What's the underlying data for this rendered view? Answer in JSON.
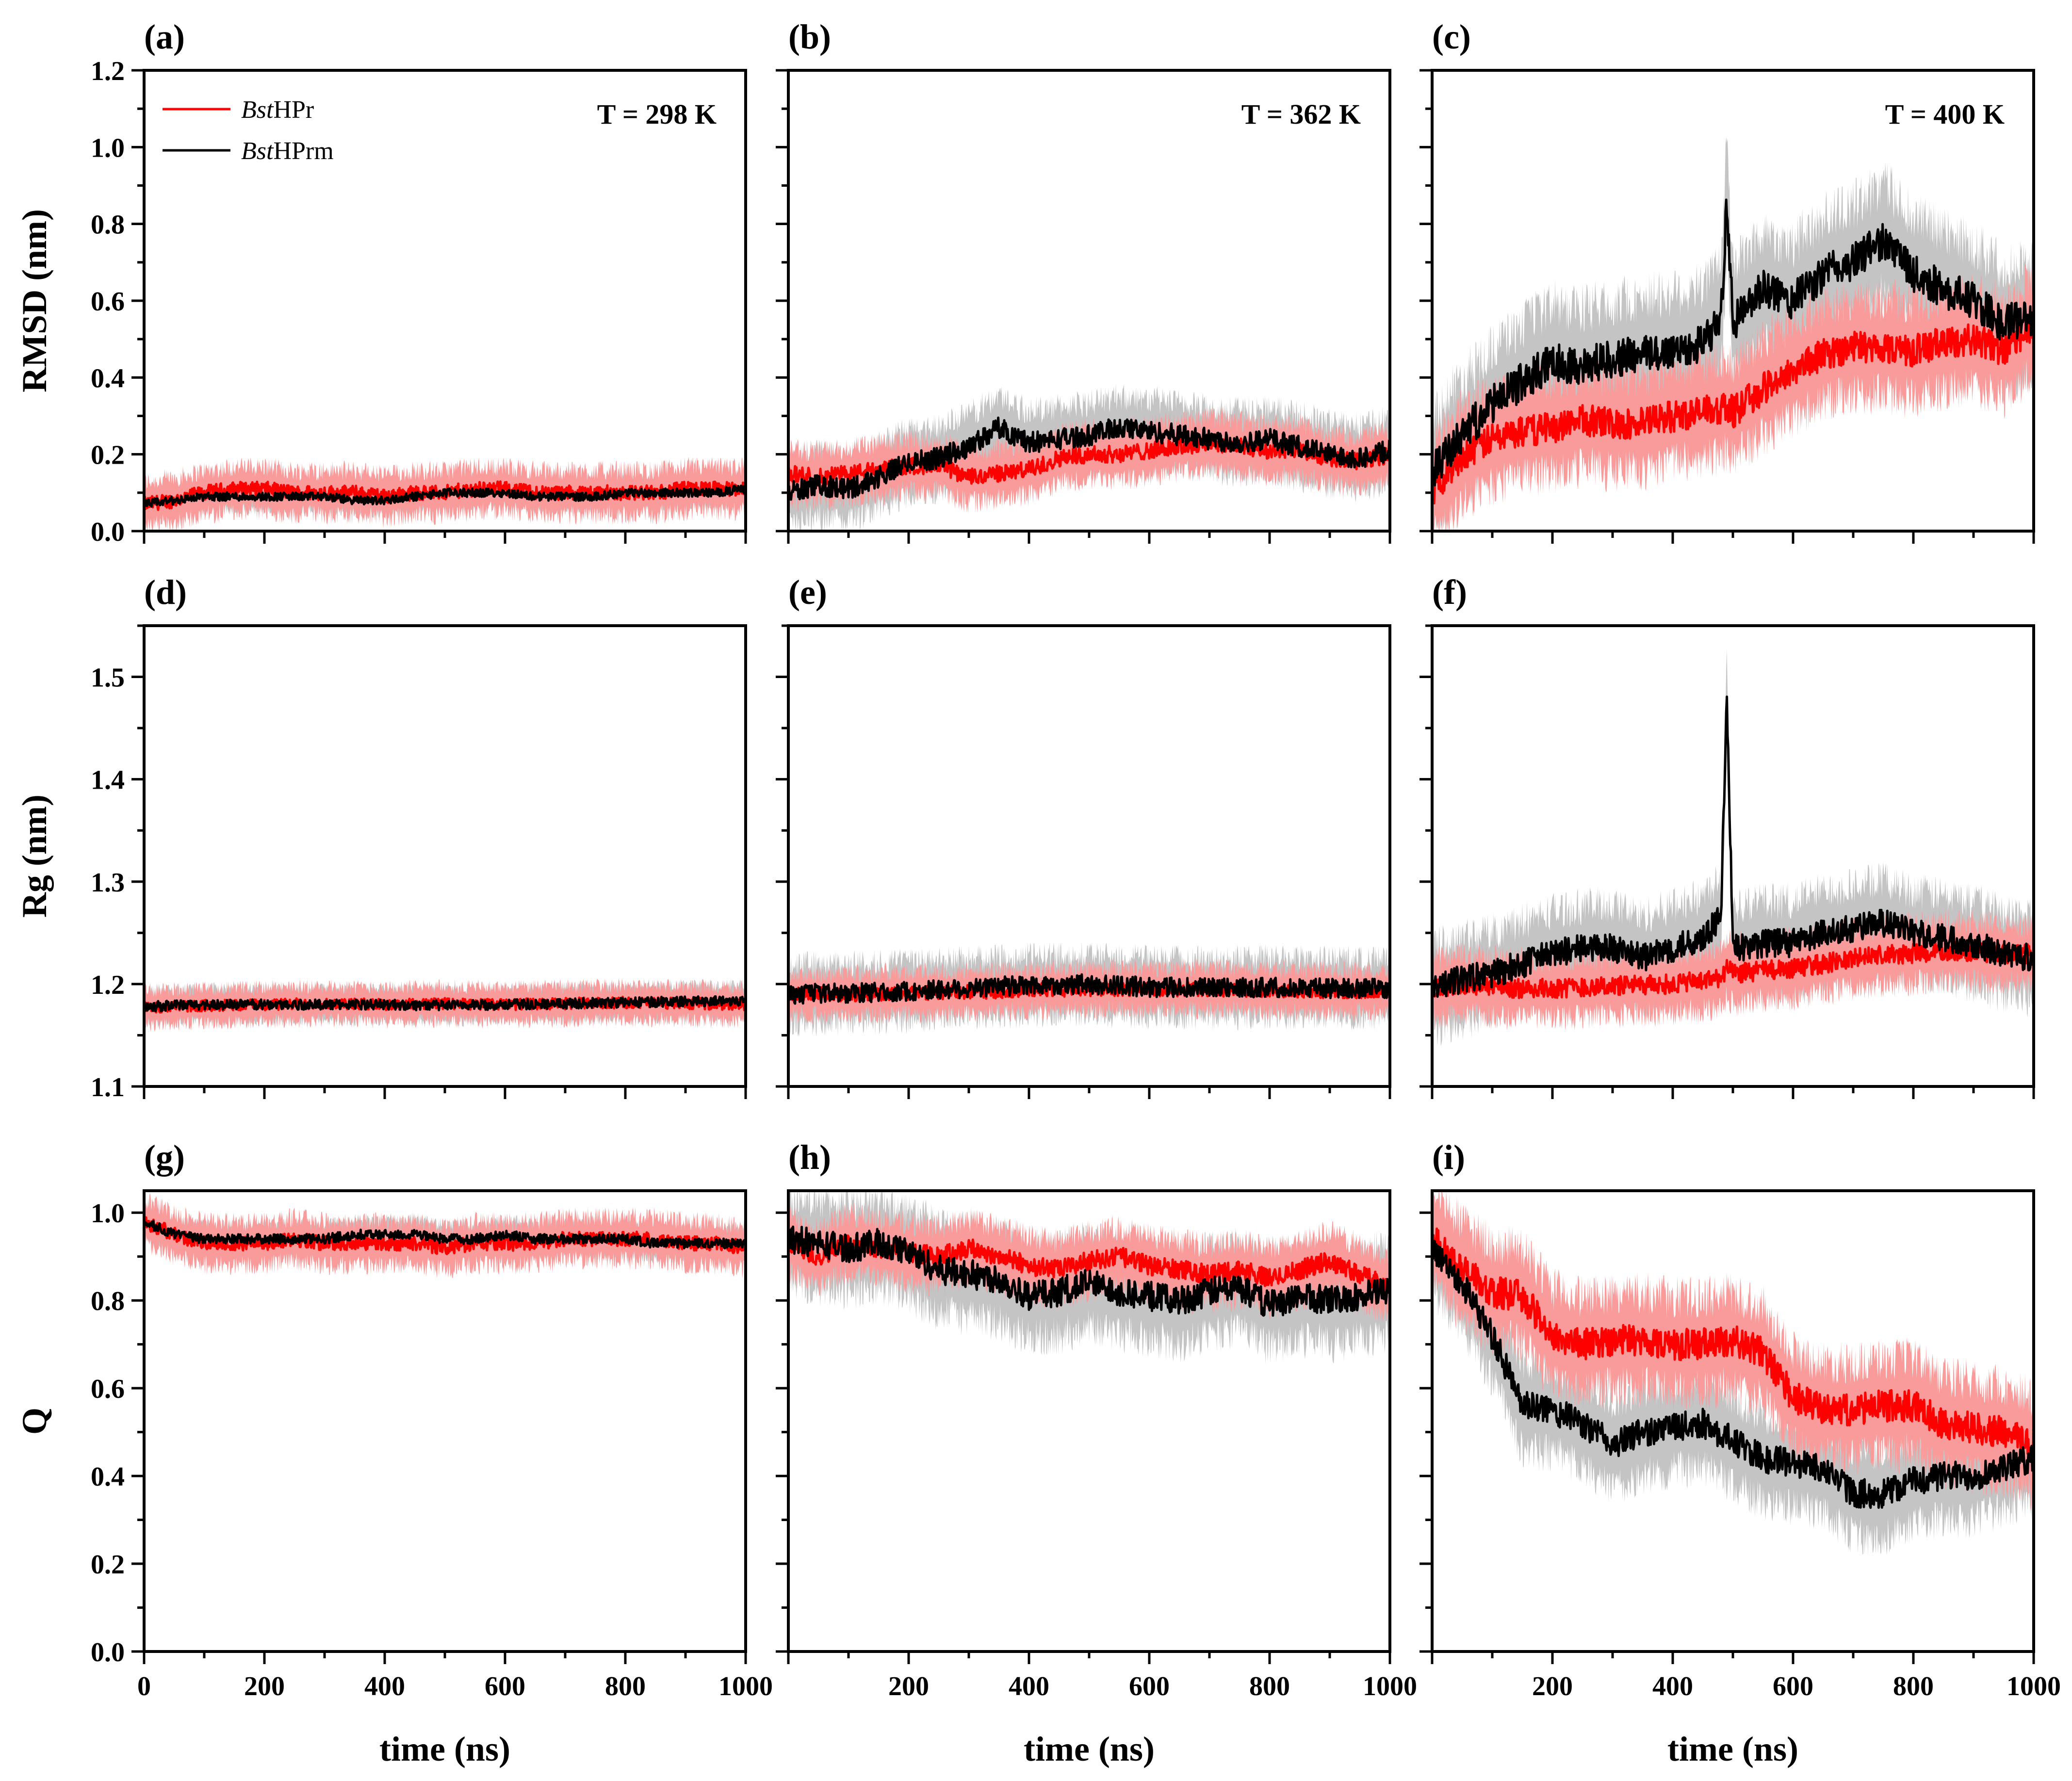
{
  "figure": {
    "legend": {
      "series": [
        {
          "italic": "Bst",
          "rest": "HPr",
          "color": "#ff0000"
        },
        {
          "italic": "Bst",
          "rest": "HPrm",
          "color": "#000000"
        }
      ]
    },
    "colors": {
      "hpr_line": "#ff0000",
      "hpr_band": "#fa9b9b",
      "hprm_line": "#000000",
      "hprm_band": "#c4c4c4"
    },
    "temperature_labels": [
      "T = 298 K",
      "T = 362 K",
      "T = 400 K"
    ],
    "shared_xlabel": "time (ns)"
  },
  "chart_data": [
    {
      "panel": "(a)",
      "type": "line",
      "ylabel": "RMSD (nm)",
      "xlabel": "",
      "xlim": [
        0,
        1000
      ],
      "ylim": [
        0,
        1.2
      ],
      "yticks": [
        "0.0",
        "0.2",
        "0.4",
        "0.6",
        "0.8",
        "1.0",
        "1.2"
      ],
      "xticks": [],
      "temperature": "T = 298 K",
      "x": [
        0,
        50,
        100,
        150,
        200,
        250,
        300,
        350,
        400,
        450,
        500,
        550,
        600,
        650,
        700,
        750,
        800,
        850,
        900,
        950,
        1000
      ],
      "series": [
        {
          "name": "BstHPr",
          "values": [
            0.07,
            0.08,
            0.1,
            0.11,
            0.11,
            0.1,
            0.1,
            0.1,
            0.09,
            0.1,
            0.1,
            0.11,
            0.11,
            0.1,
            0.1,
            0.1,
            0.1,
            0.1,
            0.11,
            0.11,
            0.11
          ],
          "band": 0.07
        },
        {
          "name": "BstHPrm",
          "values": [
            0.07,
            0.08,
            0.09,
            0.09,
            0.09,
            0.09,
            0.09,
            0.08,
            0.08,
            0.09,
            0.1,
            0.1,
            0.1,
            0.09,
            0.09,
            0.09,
            0.1,
            0.1,
            0.1,
            0.1,
            0.11
          ],
          "band": 0.04
        }
      ]
    },
    {
      "panel": "(b)",
      "type": "line",
      "ylabel": "",
      "xlabel": "",
      "xlim": [
        0,
        1000
      ],
      "ylim": [
        0,
        1.2
      ],
      "yticks": [],
      "xticks": [],
      "temperature": "T = 362 K",
      "x": [
        0,
        50,
        100,
        150,
        200,
        250,
        300,
        350,
        400,
        450,
        500,
        550,
        600,
        650,
        700,
        750,
        800,
        850,
        900,
        950,
        1000
      ],
      "series": [
        {
          "name": "BstHPr",
          "values": [
            0.15,
            0.14,
            0.15,
            0.16,
            0.17,
            0.17,
            0.14,
            0.15,
            0.16,
            0.19,
            0.2,
            0.2,
            0.21,
            0.22,
            0.23,
            0.22,
            0.21,
            0.21,
            0.19,
            0.18,
            0.2
          ],
          "band": 0.08
        },
        {
          "name": "BstHPrm",
          "values": [
            0.1,
            0.12,
            0.11,
            0.14,
            0.18,
            0.19,
            0.22,
            0.27,
            0.23,
            0.24,
            0.25,
            0.27,
            0.26,
            0.25,
            0.24,
            0.23,
            0.24,
            0.22,
            0.2,
            0.19,
            0.21
          ],
          "band": 0.1
        }
      ]
    },
    {
      "panel": "(c)",
      "type": "line",
      "ylabel": "",
      "xlabel": "",
      "xlim": [
        0,
        1000
      ],
      "ylim": [
        0,
        1.2
      ],
      "yticks": [],
      "xticks": [],
      "temperature": "T = 400 K",
      "x": [
        0,
        50,
        100,
        150,
        200,
        250,
        300,
        350,
        400,
        450,
        480,
        490,
        500,
        550,
        600,
        650,
        700,
        750,
        800,
        850,
        900,
        950,
        1000
      ],
      "series": [
        {
          "name": "BstHPr",
          "values": [
            0.1,
            0.2,
            0.24,
            0.26,
            0.27,
            0.29,
            0.28,
            0.28,
            0.3,
            0.31,
            0.32,
            0.33,
            0.31,
            0.37,
            0.42,
            0.46,
            0.48,
            0.48,
            0.47,
            0.49,
            0.5,
            0.47,
            0.54
          ],
          "band": 0.15
        },
        {
          "name": "BstHPrm",
          "values": [
            0.15,
            0.25,
            0.33,
            0.39,
            0.44,
            0.43,
            0.45,
            0.46,
            0.47,
            0.49,
            0.55,
            0.86,
            0.54,
            0.63,
            0.6,
            0.67,
            0.7,
            0.76,
            0.67,
            0.63,
            0.6,
            0.54,
            0.56
          ],
          "band": 0.18
        }
      ]
    },
    {
      "panel": "(d)",
      "type": "line",
      "ylabel": "Rg (nm)",
      "xlabel": "",
      "xlim": [
        0,
        1000
      ],
      "ylim": [
        1.1,
        1.55
      ],
      "yticks": [
        "1.1",
        "1.2",
        "1.3",
        "1.4",
        "1.5"
      ],
      "xticks": [],
      "x": [
        0,
        100,
        200,
        300,
        400,
        500,
        600,
        700,
        800,
        900,
        1000
      ],
      "series": [
        {
          "name": "BstHPr",
          "values": [
            1.177,
            1.179,
            1.18,
            1.181,
            1.18,
            1.181,
            1.18,
            1.181,
            1.182,
            1.181,
            1.18
          ],
          "band": 0.02
        },
        {
          "name": "BstHPrm",
          "values": [
            1.178,
            1.18,
            1.18,
            1.18,
            1.18,
            1.179,
            1.18,
            1.181,
            1.182,
            1.183,
            1.184
          ],
          "band": 0.018
        }
      ]
    },
    {
      "panel": "(e)",
      "type": "line",
      "ylabel": "",
      "xlabel": "",
      "xlim": [
        0,
        1000
      ],
      "ylim": [
        1.1,
        1.55
      ],
      "yticks": [],
      "xticks": [],
      "x": [
        0,
        100,
        200,
        300,
        400,
        500,
        600,
        700,
        800,
        900,
        1000
      ],
      "series": [
        {
          "name": "BstHPr",
          "values": [
            1.19,
            1.19,
            1.191,
            1.192,
            1.194,
            1.195,
            1.195,
            1.195,
            1.194,
            1.193,
            1.193
          ],
          "band": 0.025
        },
        {
          "name": "BstHPrm",
          "values": [
            1.19,
            1.191,
            1.193,
            1.196,
            1.199,
            1.2,
            1.197,
            1.196,
            1.197,
            1.196,
            1.196
          ],
          "band": 0.035
        }
      ]
    },
    {
      "panel": "(f)",
      "type": "line",
      "ylabel": "",
      "xlabel": "",
      "xlim": [
        0,
        1000
      ],
      "ylim": [
        1.1,
        1.55
      ],
      "yticks": [],
      "xticks": [],
      "x": [
        0,
        50,
        100,
        150,
        200,
        250,
        300,
        350,
        400,
        450,
        480,
        490,
        500,
        550,
        600,
        650,
        700,
        750,
        800,
        850,
        900,
        950,
        1000
      ],
      "series": [
        {
          "name": "BstHPr",
          "values": [
            1.195,
            1.2,
            1.198,
            1.195,
            1.196,
            1.197,
            1.198,
            1.199,
            1.2,
            1.203,
            1.207,
            1.215,
            1.21,
            1.213,
            1.215,
            1.22,
            1.225,
            1.228,
            1.23,
            1.232,
            1.232,
            1.23,
            1.229
          ],
          "band": 0.035
        },
        {
          "name": "BstHPrm",
          "values": [
            1.195,
            1.205,
            1.21,
            1.22,
            1.23,
            1.235,
            1.236,
            1.225,
            1.235,
            1.245,
            1.265,
            1.48,
            1.235,
            1.24,
            1.24,
            1.25,
            1.255,
            1.26,
            1.25,
            1.245,
            1.24,
            1.23,
            1.225
          ],
          "band": 0.05
        }
      ]
    },
    {
      "panel": "(g)",
      "type": "line",
      "ylabel": "Q",
      "xlabel": "time (ns)",
      "xlim": [
        0,
        1000
      ],
      "ylim": [
        0,
        1.05
      ],
      "yticks": [
        "0.0",
        "0.2",
        "0.4",
        "0.6",
        "0.8",
        "1.0"
      ],
      "xticks": [
        "0",
        "200",
        "400",
        "600",
        "800",
        "1000"
      ],
      "x": [
        0,
        50,
        100,
        150,
        200,
        250,
        300,
        350,
        400,
        450,
        500,
        550,
        600,
        650,
        700,
        750,
        800,
        850,
        900,
        950,
        1000
      ],
      "series": [
        {
          "name": "BstHPr",
          "values": [
            0.98,
            0.95,
            0.93,
            0.93,
            0.93,
            0.94,
            0.93,
            0.93,
            0.93,
            0.93,
            0.92,
            0.93,
            0.93,
            0.93,
            0.94,
            0.94,
            0.94,
            0.94,
            0.93,
            0.93,
            0.92
          ],
          "band": 0.06
        },
        {
          "name": "BstHPrm",
          "values": [
            0.98,
            0.95,
            0.94,
            0.94,
            0.94,
            0.94,
            0.94,
            0.95,
            0.95,
            0.95,
            0.94,
            0.94,
            0.95,
            0.94,
            0.94,
            0.94,
            0.94,
            0.93,
            0.93,
            0.93,
            0.93
          ],
          "band": 0.04
        }
      ]
    },
    {
      "panel": "(h)",
      "type": "line",
      "ylabel": "",
      "xlabel": "time (ns)",
      "xlim": [
        0,
        1000
      ],
      "ylim": [
        0,
        1.05
      ],
      "yticks": [],
      "xticks": [
        "200",
        "400",
        "600",
        "800",
        "1000"
      ],
      "x": [
        0,
        50,
        100,
        150,
        200,
        250,
        300,
        350,
        400,
        450,
        500,
        550,
        600,
        650,
        700,
        750,
        800,
        850,
        900,
        950,
        1000
      ],
      "series": [
        {
          "name": "BstHPr",
          "values": [
            0.93,
            0.9,
            0.93,
            0.92,
            0.91,
            0.9,
            0.92,
            0.9,
            0.88,
            0.87,
            0.89,
            0.9,
            0.88,
            0.87,
            0.86,
            0.87,
            0.85,
            0.87,
            0.89,
            0.86,
            0.83
          ],
          "band": 0.08
        },
        {
          "name": "BstHPrm",
          "values": [
            0.94,
            0.93,
            0.92,
            0.93,
            0.91,
            0.87,
            0.86,
            0.85,
            0.81,
            0.82,
            0.84,
            0.82,
            0.81,
            0.8,
            0.82,
            0.83,
            0.79,
            0.81,
            0.8,
            0.81,
            0.82
          ],
          "band": 0.12
        }
      ]
    },
    {
      "panel": "(i)",
      "type": "line",
      "ylabel": "",
      "xlabel": "time (ns)",
      "xlim": [
        0,
        1000
      ],
      "ylim": [
        0,
        1.05
      ],
      "yticks": [],
      "xticks": [
        "200",
        "400",
        "600",
        "800",
        "1000"
      ],
      "x": [
        0,
        50,
        100,
        150,
        200,
        250,
        300,
        350,
        400,
        450,
        500,
        550,
        600,
        650,
        700,
        750,
        800,
        850,
        900,
        950,
        1000
      ],
      "series": [
        {
          "name": "BstHPr",
          "values": [
            0.94,
            0.87,
            0.82,
            0.81,
            0.72,
            0.7,
            0.71,
            0.71,
            0.7,
            0.7,
            0.71,
            0.68,
            0.58,
            0.55,
            0.55,
            0.56,
            0.56,
            0.52,
            0.51,
            0.5,
            0.47
          ],
          "band": 0.13
        },
        {
          "name": "BstHPrm",
          "values": [
            0.92,
            0.84,
            0.72,
            0.56,
            0.55,
            0.52,
            0.47,
            0.5,
            0.51,
            0.52,
            0.48,
            0.44,
            0.43,
            0.42,
            0.36,
            0.36,
            0.39,
            0.4,
            0.4,
            0.42,
            0.44
          ],
          "band": 0.12
        }
      ]
    }
  ]
}
